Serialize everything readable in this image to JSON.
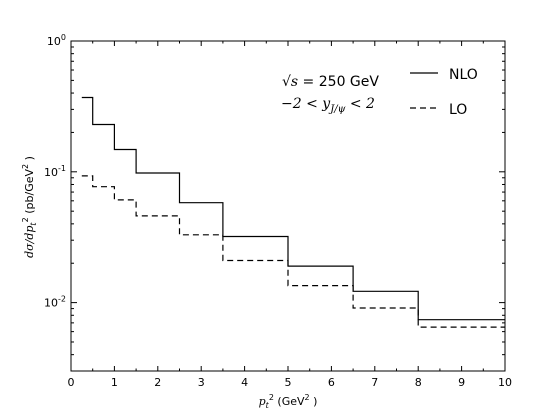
{
  "chart_data": {
    "type": "line",
    "xlabel": "p_t^2 (GeV^2)",
    "ylabel": "dσ/dp_t^2 (pb/GeV^2)",
    "xlim": [
      0,
      10
    ],
    "ylim": [
      0.003,
      1.0
    ],
    "yscale": "log",
    "grid": false,
    "legend_position": "top-right",
    "x_ticks": [
      0,
      1,
      2,
      3,
      4,
      5,
      6,
      7,
      8,
      9,
      10
    ],
    "y_ticks": [
      0.01,
      0.1,
      1.0
    ],
    "y_tick_labels": [
      "10",
      "10",
      "10"
    ],
    "y_tick_exponents": [
      "-2",
      "-1",
      "0"
    ],
    "annotations": [
      "√s = 250 GeV",
      "−2 < y_J/ψ < 2"
    ],
    "bin_edges": [
      0.25,
      0.5,
      1.0,
      1.5,
      2.5,
      3.5,
      5.0,
      6.5,
      8.0,
      10.0
    ],
    "series": [
      {
        "name": "NLO",
        "style": "solid",
        "values": [
          0.37,
          0.23,
          0.148,
          0.098,
          0.058,
          0.032,
          0.019,
          0.0122,
          0.0074
        ]
      },
      {
        "name": "LO",
        "style": "dashed",
        "values": [
          0.093,
          0.077,
          0.061,
          0.046,
          0.033,
          0.021,
          0.0135,
          0.0091,
          0.0065
        ]
      }
    ]
  }
}
